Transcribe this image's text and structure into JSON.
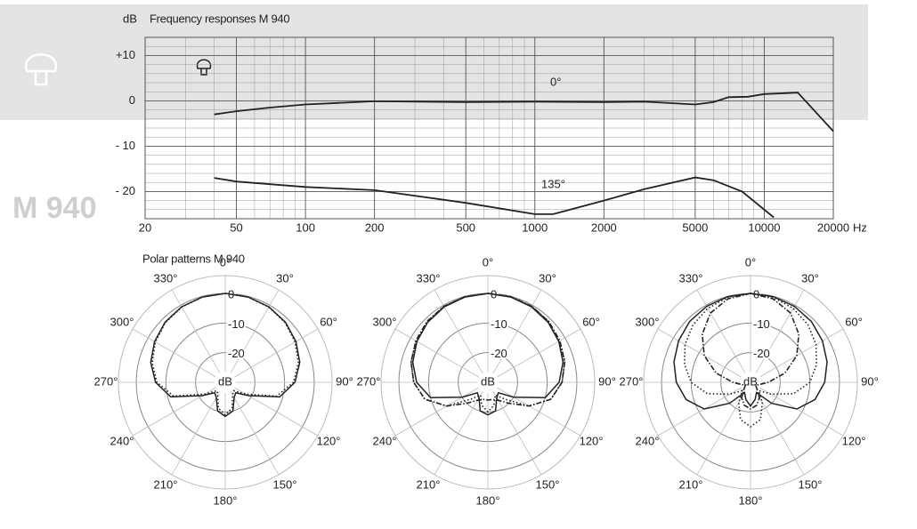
{
  "model": "M 940",
  "chart_data": [
    {
      "type": "line",
      "title": "Frequency responses M 940",
      "ylabel": "dB",
      "xlabel": "Hz",
      "log_x": true,
      "xlim": [
        20,
        20000
      ],
      "ylim": [
        -26,
        14
      ],
      "xticks": [
        20,
        50,
        100,
        200,
        500,
        1000,
        2000,
        5000,
        10000,
        20000
      ],
      "xticks_minor": [
        30,
        40,
        60,
        70,
        80,
        90,
        300,
        400,
        600,
        700,
        800,
        900,
        3000,
        4000,
        6000,
        7000,
        8000,
        9000
      ],
      "yticks": [
        {
          "value": 10,
          "label": "+10"
        },
        0,
        {
          "value": -10,
          "label": "- 10"
        },
        {
          "value": -20,
          "label": "- 20"
        }
      ],
      "yticks_minor": [
        -24,
        -22,
        -18,
        -16,
        -14,
        -12,
        -8,
        -6,
        -4,
        -2,
        2,
        4,
        6,
        8,
        12
      ],
      "grid": true,
      "series": [
        {
          "name": "0°",
          "color": "#222222",
          "x": [
            40,
            50,
            70,
            100,
            200,
            500,
            1000,
            2000,
            3000,
            5000,
            6000,
            7000,
            8500,
            10000,
            14000,
            20000
          ],
          "values": [
            -3,
            -2.3,
            -1.5,
            -0.8,
            -0.1,
            -0.3,
            -0.2,
            -0.3,
            -0.2,
            -0.8,
            -0.3,
            0.8,
            0.9,
            1.5,
            1.8,
            -6.7
          ]
        },
        {
          "name": "135°",
          "color": "#222222",
          "x": [
            40,
            50,
            100,
            200,
            500,
            1000,
            1200,
            2000,
            3000,
            5000,
            6000,
            8000,
            11000
          ],
          "values": [
            -17,
            -17.8,
            -19,
            -19.7,
            -22.5,
            -25,
            -25,
            -22,
            -19.5,
            -16.9,
            -17.5,
            -20,
            -25.7
          ]
        }
      ]
    },
    {
      "type": "polar",
      "title": "Polar patterns  M 940",
      "rlabel": "dB",
      "rlim": [
        -30,
        6
      ],
      "rticks": [
        0,
        -10,
        -20
      ],
      "angles": [
        0,
        15,
        30,
        45,
        60,
        75,
        90,
        105,
        120,
        135,
        150,
        165,
        180,
        195,
        210,
        225,
        240,
        255,
        270,
        285,
        300,
        315,
        330,
        345
      ],
      "angle_ticks": [
        {
          "value": 0,
          "label": "0°"
        },
        {
          "value": 30,
          "label": "30°"
        },
        {
          "value": 60,
          "label": "60°"
        },
        {
          "value": 90,
          "label": "90°"
        },
        {
          "value": 120,
          "label": "120°"
        },
        {
          "value": 150,
          "label": "150°"
        },
        {
          "value": 180,
          "label": "180°"
        },
        {
          "value": 210,
          "label": "210°"
        },
        {
          "value": 240,
          "label": "240°"
        },
        {
          "value": 270,
          "label": "270°"
        },
        {
          "value": 300,
          "label": "300°"
        },
        {
          "value": 330,
          "label": "330°"
        }
      ],
      "series": [
        {
          "color": "#222222",
          "dash": "solid",
          "values": [
            0,
            -0.2,
            -0.6,
            -1.3,
            -2.5,
            -4,
            -6.5,
            -11,
            -21,
            -25,
            -24,
            -20,
            -18.5,
            -20,
            -24,
            -25,
            -21,
            -11,
            -6.5,
            -4,
            -2.5,
            -1.3,
            -0.6,
            -0.2
          ]
        },
        {
          "color": "#222222",
          "dash": "dotted",
          "values": [
            0,
            -0.2,
            -0.7,
            -1.5,
            -2.8,
            -4.5,
            -7,
            -12,
            -22,
            -26,
            -25,
            -21,
            -19,
            -21,
            -25,
            -26,
            -22,
            -12,
            -7,
            -4.5,
            -2.8,
            -1.5,
            -0.7,
            -0.2
          ]
        }
      ]
    },
    {
      "type": "polar",
      "rlabel": "dB",
      "rlim": [
        -30,
        6
      ],
      "rticks": [
        0,
        -10,
        -20
      ],
      "angles": [
        0,
        15,
        30,
        45,
        60,
        75,
        90,
        105,
        120,
        135,
        150,
        165,
        180,
        195,
        210,
        225,
        240,
        255,
        270,
        285,
        300,
        315,
        330,
        345
      ],
      "angle_ticks": [
        {
          "value": 0,
          "label": "0°"
        },
        {
          "value": 30,
          "label": "30°"
        },
        {
          "value": 60,
          "label": "60°"
        },
        {
          "value": 90,
          "label": "90°"
        },
        {
          "value": 120,
          "label": "120°"
        },
        {
          "value": 150,
          "label": "150°"
        },
        {
          "value": 180,
          "label": "180°"
        },
        {
          "value": 210,
          "label": "210°"
        },
        {
          "value": 240,
          "label": "240°"
        },
        {
          "value": 270,
          "label": "270°"
        },
        {
          "value": 300,
          "label": "300°"
        },
        {
          "value": 330,
          "label": "330°"
        }
      ],
      "series": [
        {
          "color": "#222222",
          "dash": "solid",
          "values": [
            0,
            -0.2,
            -0.6,
            -1.3,
            -2.4,
            -3.8,
            -6,
            -10,
            -20,
            -25,
            -24,
            -20,
            -19,
            -20,
            -24,
            -25,
            -20,
            -10,
            -6,
            -3.8,
            -2.4,
            -1.3,
            -0.6,
            -0.2
          ]
        },
        {
          "color": "#222222",
          "dash": "dotted",
          "values": [
            0,
            -0.1,
            -0.4,
            -1,
            -2,
            -3.2,
            -5,
            -8,
            -14,
            -22,
            -25,
            -22,
            -20,
            -22,
            -25,
            -22,
            -14,
            -8,
            -5,
            -3.2,
            -2,
            -1,
            -0.4,
            -0.1
          ]
        },
        {
          "color": "#222222",
          "dash": "dashdot",
          "values": [
            0,
            -0.1,
            -0.4,
            -1,
            -2,
            -3.2,
            -5,
            -8,
            -14,
            -20,
            -23,
            -24,
            -24,
            -24,
            -23,
            -20,
            -14,
            -8,
            -5,
            -3.2,
            -2,
            -1,
            -0.4,
            -0.1
          ]
        }
      ]
    },
    {
      "type": "polar",
      "rlabel": "dB",
      "rlim": [
        -30,
        6
      ],
      "rticks": [
        0,
        -10,
        -20
      ],
      "angles": [
        0,
        15,
        30,
        45,
        60,
        75,
        90,
        105,
        120,
        135,
        150,
        165,
        180,
        195,
        210,
        225,
        240,
        255,
        270,
        285,
        300,
        315,
        330,
        345
      ],
      "angle_ticks": [
        {
          "value": 0,
          "label": "0°"
        },
        {
          "value": 30,
          "label": "30°"
        },
        {
          "value": 60,
          "label": "60°"
        },
        {
          "value": 90,
          "label": "90°"
        },
        {
          "value": 120,
          "label": "120°"
        },
        {
          "value": 150,
          "label": "150°"
        },
        {
          "value": 180,
          "label": "180°"
        },
        {
          "value": 210,
          "label": "210°"
        },
        {
          "value": 240,
          "label": "240°"
        },
        {
          "value": 270,
          "label": "270°"
        },
        {
          "value": 300,
          "label": "300°"
        },
        {
          "value": 330,
          "label": "330°"
        }
      ],
      "series": [
        {
          "color": "#222222",
          "dash": "solid",
          "values": [
            0,
            -0.1,
            -0.4,
            -1,
            -2,
            -3.3,
            -5,
            -7.5,
            -12,
            -20,
            -26,
            -24,
            -22,
            -24,
            -26,
            -20,
            -12,
            -7.5,
            -5,
            -3.3,
            -2,
            -1,
            -0.4,
            -0.1
          ]
        },
        {
          "color": "#222222",
          "dash": "dotted",
          "values": [
            0,
            -0.3,
            -1.2,
            -2.6,
            -4.5,
            -7,
            -10,
            -15,
            -22,
            -26,
            -22,
            -17,
            -15,
            -17,
            -22,
            -26,
            -22,
            -15,
            -10,
            -7,
            -4.5,
            -2.6,
            -1.2,
            -0.3
          ]
        },
        {
          "color": "#222222",
          "dash": "dashdot",
          "values": [
            0,
            -0.8,
            -3,
            -7,
            -12,
            -18,
            -24,
            -27,
            -28,
            -27,
            -24,
            -22,
            -21,
            -22,
            -24,
            -27,
            -28,
            -27,
            -24,
            -18,
            -12,
            -7,
            -3,
            -0.8
          ]
        }
      ]
    }
  ]
}
